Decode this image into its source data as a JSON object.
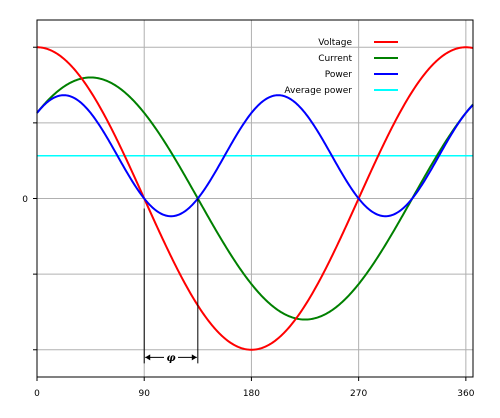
{
  "chart_data": {
    "type": "line",
    "title": "",
    "xlabel": "",
    "ylabel": "",
    "xlim": [
      0,
      366
    ],
    "ylim": [
      -1.18,
      1.18
    ],
    "x_ticks": [
      0,
      90,
      180,
      270,
      360
    ],
    "x_tick_labels": [
      "0",
      "90",
      "180",
      "270",
      "360"
    ],
    "y_ticks": [
      -1,
      -0.5,
      0,
      0.5,
      1
    ],
    "y_tick_labels": [
      "",
      "",
      "0",
      "",
      ""
    ],
    "grid": true,
    "legend_position": "top-right",
    "phase_shift_deg": 45,
    "phase_label": "φ",
    "series": [
      {
        "name": "Voltage",
        "color": "#ff0000",
        "formula": "cos(x)",
        "amplitude": 1.0,
        "phase_deg": 0
      },
      {
        "name": "Current",
        "color": "#008000",
        "formula": "0.8*cos(x-45)",
        "amplitude": 0.8,
        "phase_deg": 45
      },
      {
        "name": "Power",
        "color": "#0000ff",
        "formula": "0.8*cos(x)*cos(x-45)",
        "amplitude": 0.8
      },
      {
        "name": "Average power",
        "color": "#00ffff",
        "value": 0.2828
      }
    ]
  }
}
